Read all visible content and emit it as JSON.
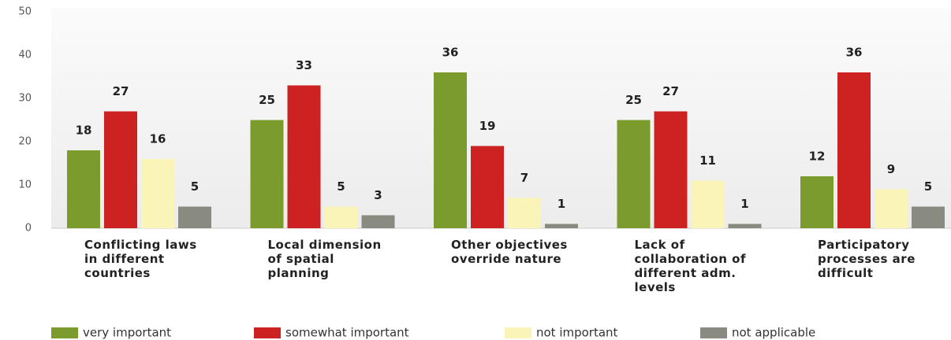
{
  "chart_data": {
    "type": "bar",
    "categories": [
      "Conflicting laws in different countries",
      "Local dimension of spatial planning",
      "Other objectives override nature",
      "Lack of collaboration of different adm. levels",
      "Participatory processes are difficult"
    ],
    "series": [
      {
        "name": "very important",
        "color": "#7b9b2c",
        "values": [
          18,
          25,
          36,
          25,
          12
        ]
      },
      {
        "name": "somewhat important",
        "color": "#cc2222",
        "values": [
          27,
          33,
          19,
          27,
          36
        ]
      },
      {
        "name": "not important",
        "color": "#fbf4b8",
        "values": [
          16,
          5,
          7,
          11,
          9
        ]
      },
      {
        "name": "not applicable",
        "color": "#8a8b80",
        "values": [
          5,
          3,
          1,
          1,
          5
        ]
      }
    ],
    "ylim": [
      0,
      50
    ],
    "yticks": [
      0,
      10,
      20,
      30,
      40,
      50
    ]
  }
}
